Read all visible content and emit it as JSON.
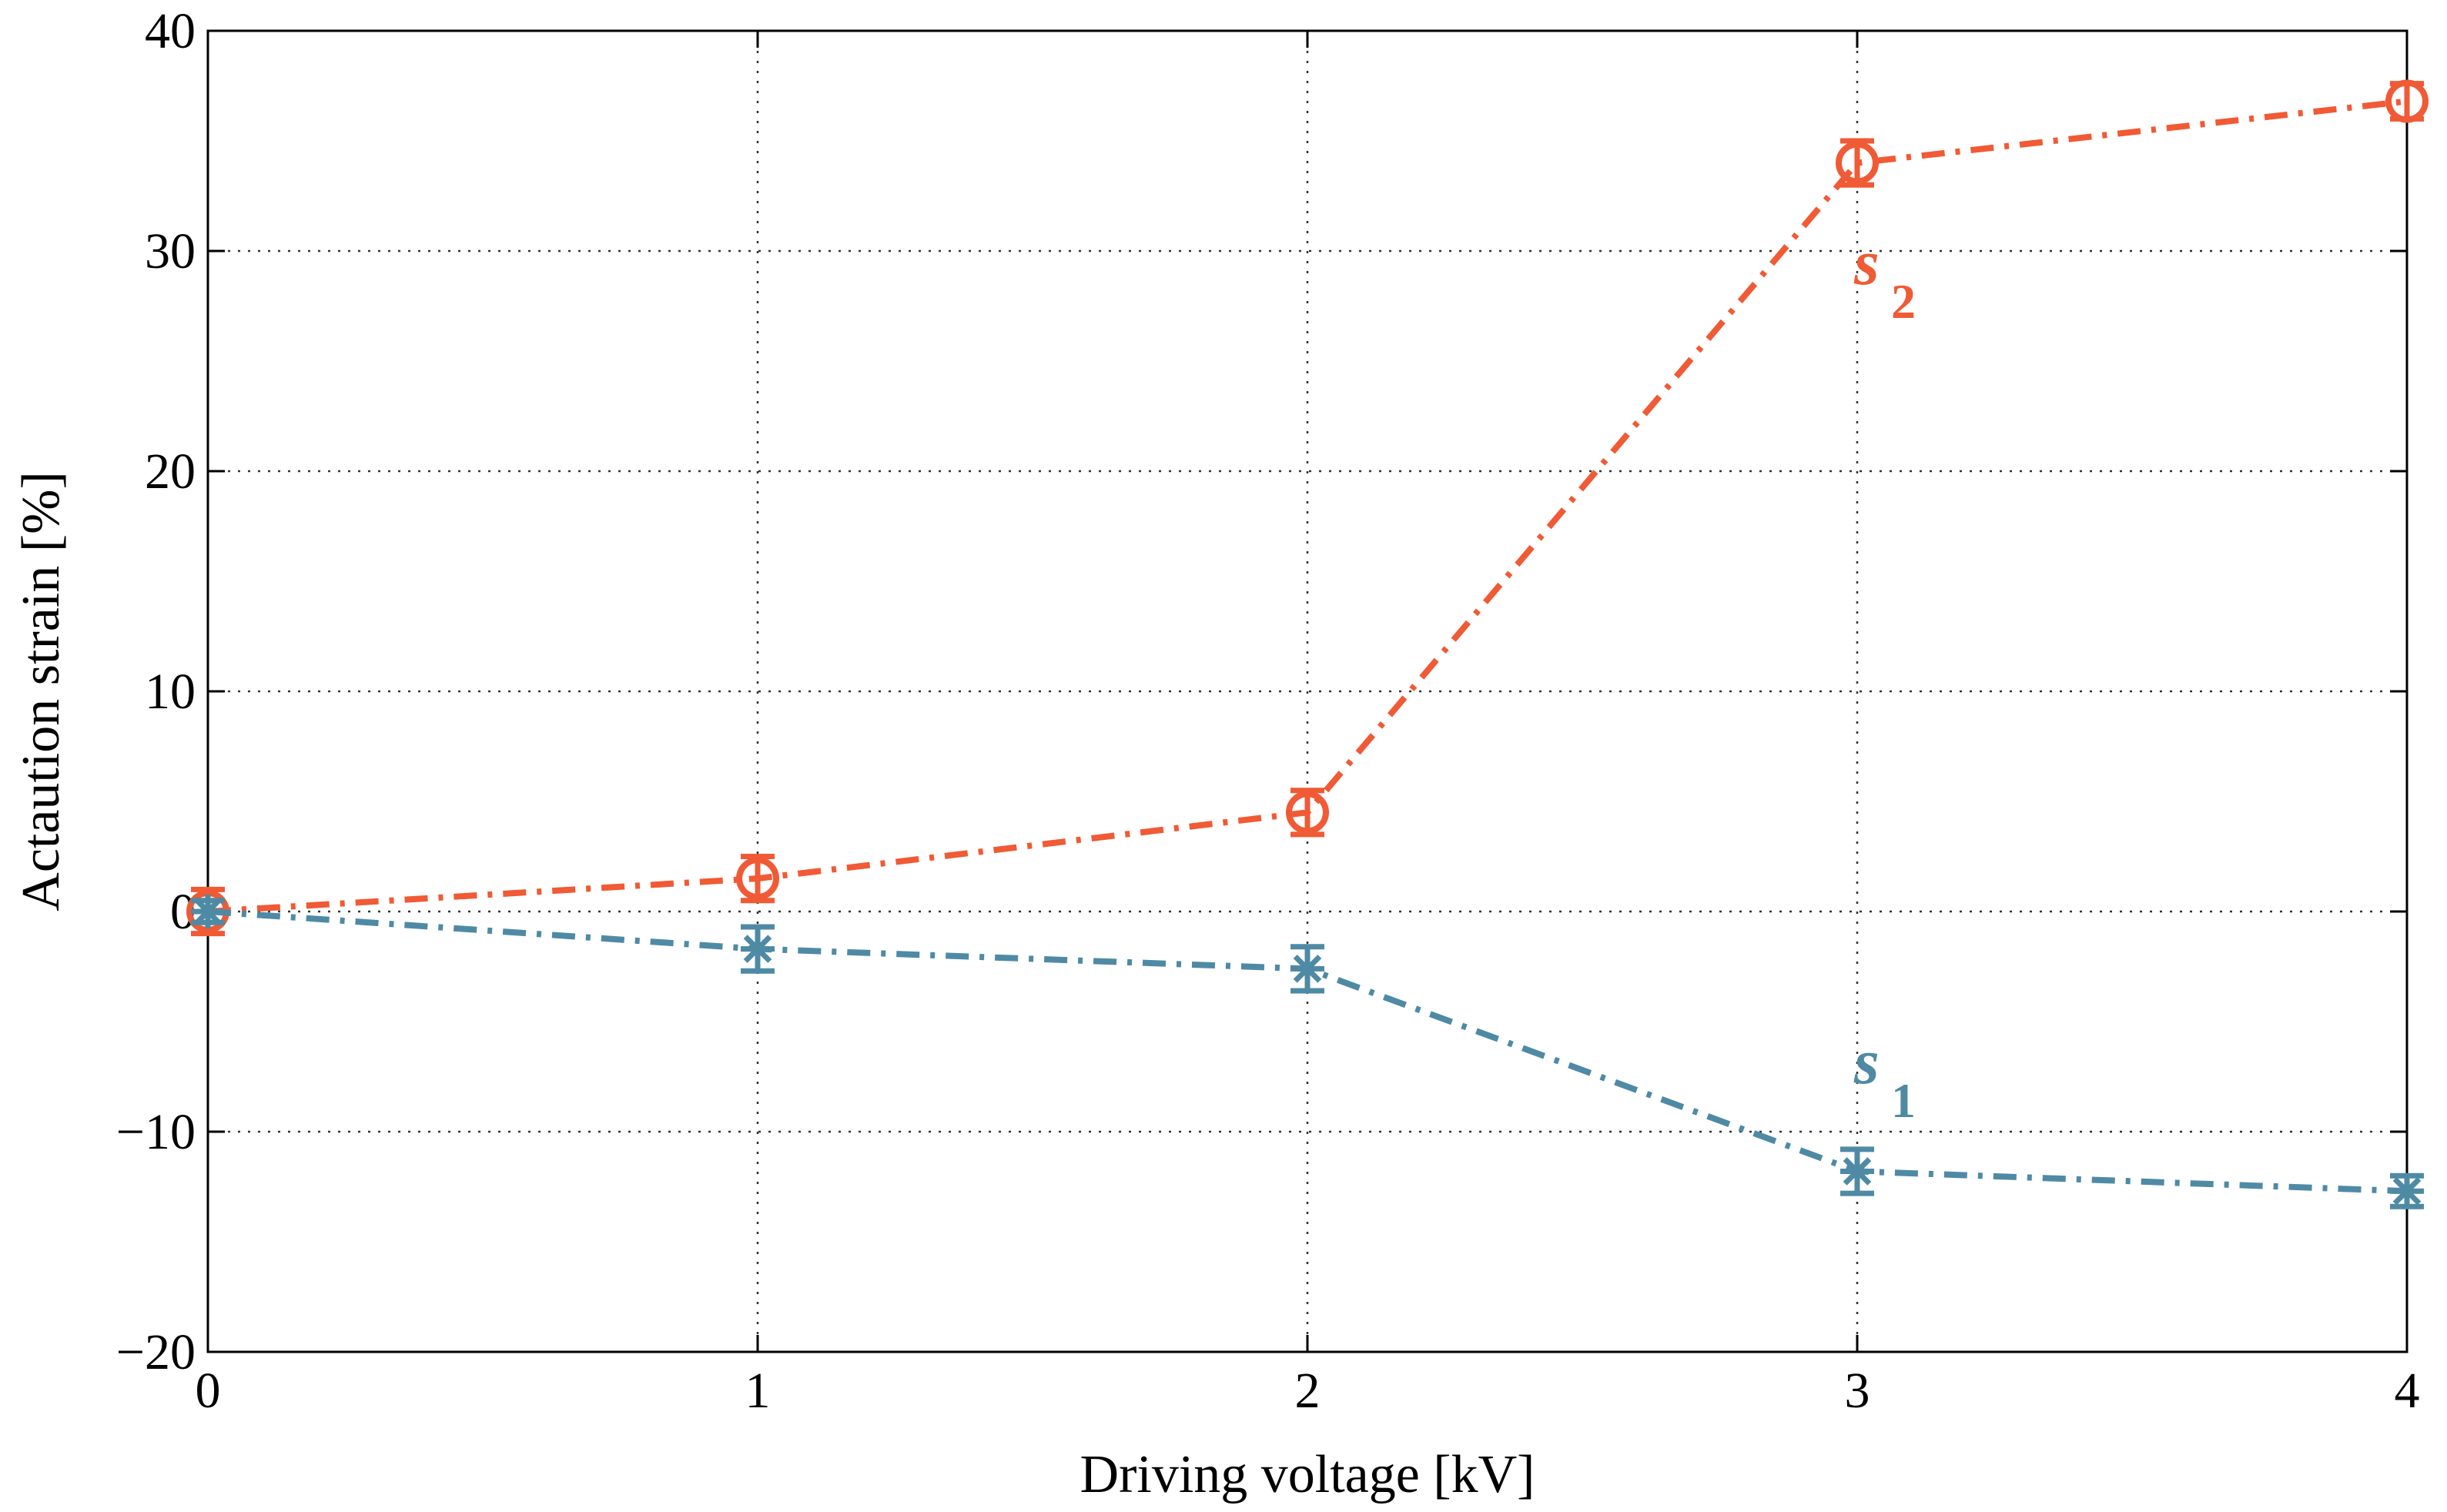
{
  "chart_data": {
    "type": "line",
    "title": "",
    "xlabel": "Driving voltage [kV]",
    "ylabel": "Actaution strain [%]",
    "xlim": [
      0,
      4
    ],
    "ylim": [
      -20,
      40
    ],
    "xticks": [
      0,
      1,
      2,
      3,
      4
    ],
    "yticks": [
      -20,
      -10,
      0,
      10,
      20,
      30,
      40
    ],
    "xtick_labels": [
      "0",
      "1",
      "2",
      "3",
      "4"
    ],
    "ytick_labels": [
      "−20",
      "−10",
      "0",
      "10",
      "20",
      "30",
      "40"
    ],
    "grid": true,
    "legend": "none",
    "series": [
      {
        "name": "s2",
        "label_main": "s",
        "label_sub": "2",
        "color": "#f05a35",
        "marker": "circle",
        "line_style": "dash-dot",
        "x": [
          0,
          1,
          2,
          3,
          4
        ],
        "y": [
          0,
          1.5,
          4.5,
          34,
          36.8
        ],
        "err": [
          1,
          1,
          1,
          1,
          0.8
        ]
      },
      {
        "name": "s1",
        "label_main": "s",
        "label_sub": "1",
        "color": "#4f8aa5",
        "marker": "asterisk",
        "line_style": "dash-dot",
        "x": [
          0,
          1,
          2,
          3,
          4
        ],
        "y": [
          0,
          -1.7,
          -2.6,
          -11.8,
          -12.7
        ],
        "err": [
          0.5,
          1,
          1,
          1,
          0.7
        ]
      }
    ]
  }
}
